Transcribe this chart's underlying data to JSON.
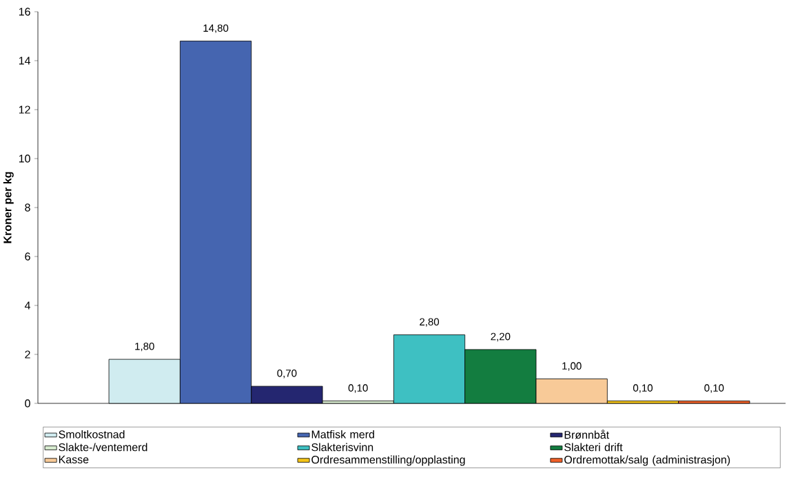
{
  "chart_data": {
    "type": "bar",
    "ylabel": "Kroner per kg",
    "categories": [
      null
    ],
    "ylim": [
      0,
      16
    ],
    "yticks": [
      0,
      2,
      4,
      6,
      8,
      10,
      12,
      14,
      16
    ],
    "grid": false,
    "legend": "bottom",
    "series": [
      {
        "name": "Smoltkostnad",
        "color": "#d0ecf0",
        "values": [
          1.8
        ],
        "value_labels": [
          "1,80"
        ]
      },
      {
        "name": "Matfisk merd",
        "color": "#4565b0",
        "values": [
          14.8
        ],
        "value_labels": [
          "14,80"
        ]
      },
      {
        "name": "Brønnbåt",
        "color": "#242670",
        "values": [
          0.7
        ],
        "value_labels": [
          "0,70"
        ]
      },
      {
        "name": "Slakte-/ventemerd",
        "color": "#d8ecd0",
        "values": [
          0.1
        ],
        "value_labels": [
          "0,10"
        ]
      },
      {
        "name": "Slakterisvinn",
        "color": "#3ec0c2",
        "values": [
          2.8
        ],
        "value_labels": [
          "2,80"
        ]
      },
      {
        "name": "Slakteri drift",
        "color": "#137d40",
        "values": [
          2.2
        ],
        "value_labels": [
          "2,20"
        ]
      },
      {
        "name": "Kasse",
        "color": "#f8ca98",
        "values": [
          1.0
        ],
        "value_labels": [
          "1,00"
        ]
      },
      {
        "name": "Ordresammenstilling/opplasting",
        "color": "#f4c418",
        "values": [
          0.1
        ],
        "value_labels": [
          "0,10"
        ]
      },
      {
        "name": "Ordremottak/salg (administrasjon)",
        "color": "#f06028",
        "values": [
          0.1
        ],
        "value_labels": [
          "0,10"
        ]
      }
    ]
  }
}
